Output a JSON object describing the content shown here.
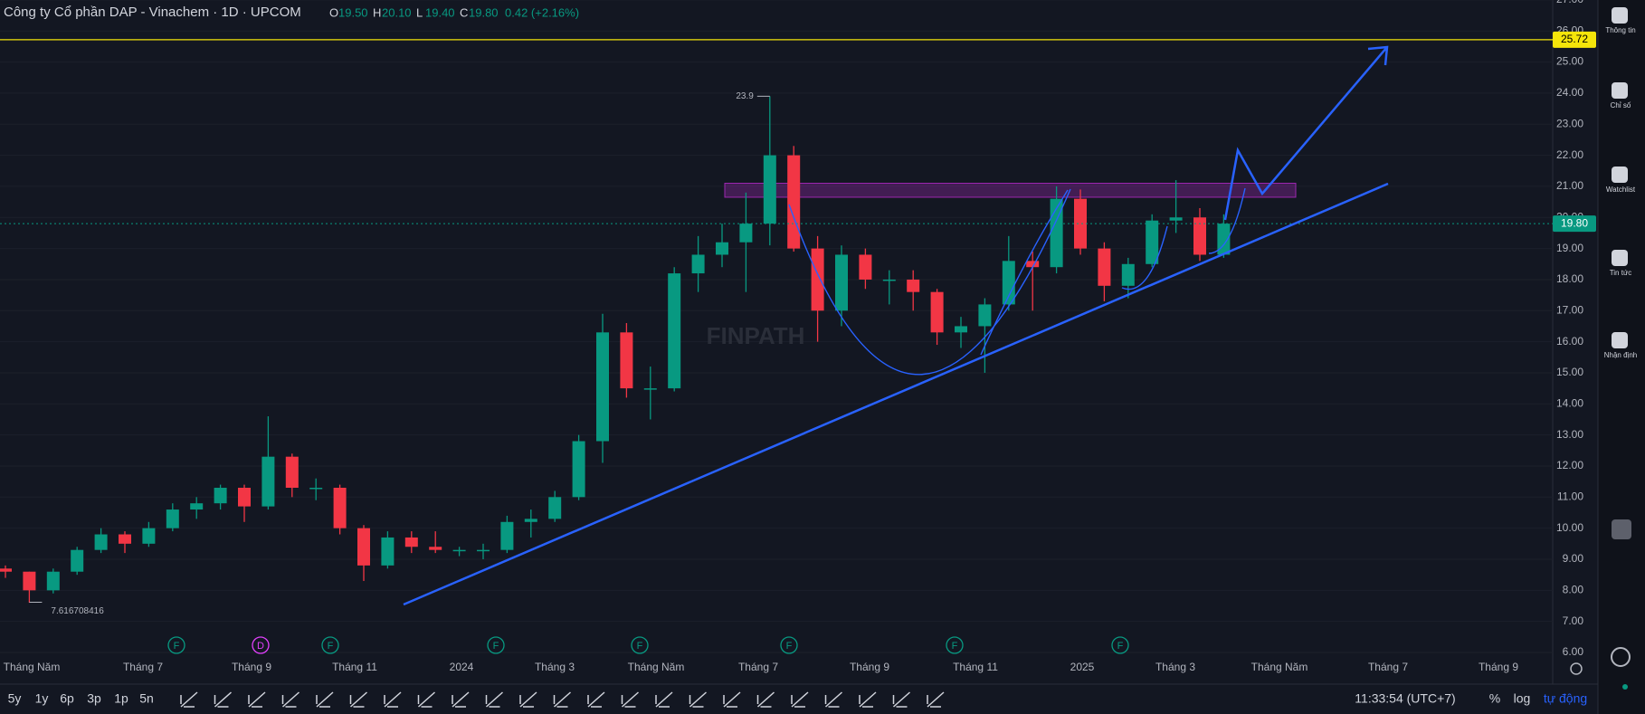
{
  "header": {
    "title": "Công ty Cổ phần DAP - Vinachem · 1D · UPCOM",
    "ohlc": [
      {
        "key": "O",
        "value": "19.50"
      },
      {
        "key": "H",
        "value": "20.10"
      },
      {
        "key": "L",
        "value": "19.40"
      },
      {
        "key": "C",
        "value": "19.80"
      }
    ],
    "change": "0.42 (+2.16%)"
  },
  "watermark": "FINPATH",
  "chart_data": {
    "type": "candlestick",
    "ylim": [
      6,
      27
    ],
    "yticks": [
      {
        "value": 6,
        "label": "6.00"
      },
      {
        "value": 7,
        "label": "7.00"
      },
      {
        "value": 8,
        "label": "8.00"
      },
      {
        "value": 9,
        "label": "9.00"
      },
      {
        "value": 10,
        "label": "10.00"
      },
      {
        "value": 11,
        "label": "11.00"
      },
      {
        "value": 12,
        "label": "12.00"
      },
      {
        "value": 13,
        "label": "13.00"
      },
      {
        "value": 14,
        "label": "14.00"
      },
      {
        "value": 15,
        "label": "15.00"
      },
      {
        "value": 16,
        "label": "16.00"
      },
      {
        "value": 17,
        "label": "17.00"
      },
      {
        "value": 18,
        "label": "18.00"
      },
      {
        "value": 19,
        "label": "19.00"
      },
      {
        "value": 20,
        "label": "20.00"
      },
      {
        "value": 21,
        "label": "21.00"
      },
      {
        "value": 22,
        "label": "22.00"
      },
      {
        "value": 23,
        "label": "23.00"
      },
      {
        "value": 24,
        "label": "24.00"
      },
      {
        "value": 25,
        "label": "25.00"
      },
      {
        "value": 26,
        "label": "26.00"
      },
      {
        "value": 27,
        "label": "27.00"
      }
    ],
    "xticks": [
      "Tháng Năm",
      "Tháng 7",
      "Tháng 9",
      "Tháng 11",
      "2024",
      "Tháng 3",
      "Tháng Năm",
      "Tháng 7",
      "Tháng 9",
      "Tháng 11",
      "2025",
      "Tháng 3",
      "Tháng Năm",
      "Tháng 7",
      "Tháng 9"
    ],
    "up_color": "#089981",
    "down_color": "#f23645",
    "grid": true,
    "candles": [
      [
        8.7,
        8.8,
        8.4,
        8.6
      ],
      [
        8.6,
        8.6,
        7.6,
        8.0
      ],
      [
        8.0,
        8.7,
        7.9,
        8.6
      ],
      [
        8.6,
        9.4,
        8.5,
        9.3
      ],
      [
        9.3,
        10.0,
        9.2,
        9.8
      ],
      [
        9.8,
        9.9,
        9.2,
        9.5
      ],
      [
        9.5,
        10.2,
        9.4,
        10.0
      ],
      [
        10.0,
        10.8,
        9.9,
        10.6
      ],
      [
        10.6,
        11.0,
        10.3,
        10.8
      ],
      [
        10.8,
        11.4,
        10.6,
        11.3
      ],
      [
        11.3,
        11.4,
        10.2,
        10.7
      ],
      [
        10.7,
        13.6,
        10.6,
        12.3
      ],
      [
        12.3,
        12.4,
        11.0,
        11.3
      ],
      [
        11.3,
        11.6,
        10.9,
        11.3
      ],
      [
        11.3,
        11.4,
        9.8,
        10.0
      ],
      [
        10.0,
        10.1,
        8.3,
        8.8
      ],
      [
        8.8,
        9.9,
        8.7,
        9.7
      ],
      [
        9.7,
        9.9,
        9.2,
        9.4
      ],
      [
        9.4,
        9.9,
        9.2,
        9.3
      ],
      [
        9.3,
        9.4,
        9.1,
        9.3
      ],
      [
        9.3,
        9.5,
        9.0,
        9.3
      ],
      [
        9.3,
        10.4,
        9.2,
        10.2
      ],
      [
        10.2,
        10.6,
        9.7,
        10.3
      ],
      [
        10.3,
        11.2,
        10.2,
        11.0
      ],
      [
        11.0,
        13.0,
        10.9,
        12.8
      ],
      [
        12.8,
        16.9,
        12.1,
        16.3
      ],
      [
        16.3,
        16.6,
        14.2,
        14.5
      ],
      [
        14.5,
        15.2,
        13.5,
        14.5
      ],
      [
        14.5,
        18.4,
        14.4,
        18.2
      ],
      [
        18.2,
        19.4,
        17.6,
        18.8
      ],
      [
        18.8,
        19.8,
        18.4,
        19.2
      ],
      [
        19.2,
        20.8,
        17.6,
        19.8
      ],
      [
        19.8,
        23.9,
        19.1,
        22.0
      ],
      [
        22.0,
        22.3,
        18.9,
        19.0
      ],
      [
        19.0,
        19.4,
        16.0,
        17.0
      ],
      [
        17.0,
        19.1,
        16.5,
        18.8
      ],
      [
        18.8,
        19.0,
        17.7,
        18.0
      ],
      [
        18.0,
        18.3,
        17.2,
        18.0
      ],
      [
        18.0,
        18.3,
        17.0,
        17.6
      ],
      [
        17.6,
        17.7,
        15.9,
        16.3
      ],
      [
        16.3,
        16.8,
        15.8,
        16.5
      ],
      [
        16.5,
        17.4,
        15.0,
        17.2
      ],
      [
        17.2,
        19.4,
        17.0,
        18.6
      ],
      [
        18.6,
        18.9,
        17.0,
        18.4
      ],
      [
        18.4,
        21.0,
        18.2,
        20.6
      ],
      [
        20.6,
        20.9,
        18.8,
        19.0
      ],
      [
        19.0,
        19.2,
        17.3,
        17.8
      ],
      [
        17.8,
        18.7,
        17.4,
        18.5
      ],
      [
        18.5,
        20.1,
        18.4,
        19.9
      ],
      [
        19.9,
        21.2,
        19.5,
        20.0
      ],
      [
        20.0,
        20.3,
        18.6,
        18.8
      ],
      [
        18.8,
        20.1,
        18.7,
        19.8
      ]
    ],
    "high_label": 23.9,
    "low_label": 7.616708416,
    "level_line": {
      "value": 25.72,
      "color": "#f5e50a"
    },
    "price_line": {
      "value": 19.8,
      "label": "19.80",
      "color": "#089981"
    },
    "zone": {
      "top": 21.1,
      "bottom": 20.65,
      "color": "#9c27b0"
    },
    "events": [
      {
        "label": "F",
        "color": "#089981"
      },
      {
        "label": "D",
        "color": "#e040fb"
      },
      {
        "label": "F",
        "color": "#089981"
      },
      {
        "label": "F",
        "color": "#089981"
      },
      {
        "label": "F",
        "color": "#089981"
      },
      {
        "label": "F",
        "color": "#089981"
      },
      {
        "label": "F",
        "color": "#089981"
      },
      {
        "label": "F",
        "color": "#089981"
      }
    ]
  },
  "sidebar": [
    "Thông tin",
    "Chỉ số",
    "Watchlist",
    "Tin tức",
    "Nhận định"
  ],
  "toolbar": {
    "ranges": [
      "5y",
      "1y",
      "6p",
      "3p",
      "1p",
      "5n"
    ],
    "clock": "11:33:54 (UTC+7)",
    "percent": "%",
    "log": "log",
    "auto": "tự động"
  }
}
